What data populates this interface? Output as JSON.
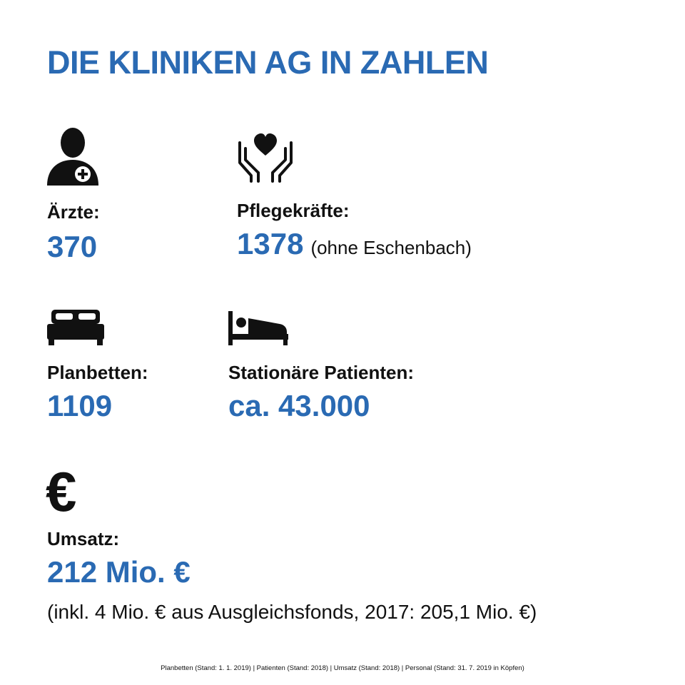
{
  "title": "DIE KLINIKEN AG IN ZAHLEN",
  "accent_color": "#2a6ab3",
  "stats": {
    "aerzte": {
      "icon": "doctor-icon",
      "label": "Ärzte:",
      "value": "370"
    },
    "pflege": {
      "icon": "caring-hands-heart-icon",
      "label": "Pflegekräfte:",
      "value": "1378",
      "note": "(ohne Eschenbach)"
    },
    "planbetten": {
      "icon": "double-bed-icon",
      "label": "Planbetten:",
      "value": "1109"
    },
    "patienten": {
      "icon": "patient-bed-icon",
      "label": "Stationäre Patienten:",
      "value": "ca. 43.000"
    },
    "umsatz": {
      "icon": "euro-icon",
      "label": "Umsatz:",
      "value": "212 Mio. €",
      "note": "(inkl. 4 Mio. € aus Ausgleichsfonds, 2017: 205,1 Mio. €)"
    }
  },
  "footnote": "Planbetten (Stand: 1. 1. 2019) | Patienten (Stand: 2018) | Umsatz (Stand: 2018) | Personal (Stand: 31. 7. 2019 in Köpfen)"
}
